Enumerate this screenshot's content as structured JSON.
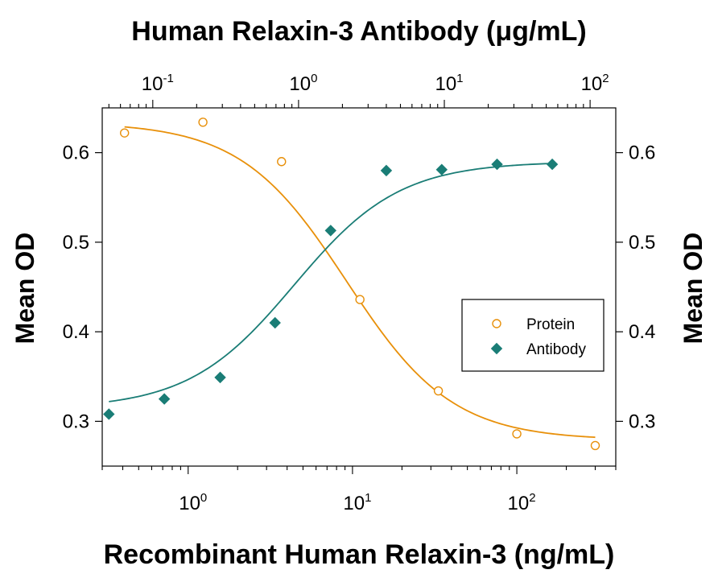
{
  "chart_data": {
    "type": "scatter",
    "title": "Human Relaxin-3 Antibody (μg/mL)",
    "xlabel": "Recombinant Human Relaxin-3 (ng/mL)",
    "x2label": "Human Relaxin-3 Antibody (μg/mL)",
    "ylabel": "Mean OD",
    "y2label": "Mean OD",
    "xscale": "log",
    "xlim": [
      0.3,
      400
    ],
    "x2lim": [
      0.045,
      150
    ],
    "ylim": [
      0.25,
      0.65
    ],
    "yticks": [
      "0.3",
      "0.4",
      "0.5",
      "0.6"
    ],
    "xticks": [
      {
        "value": 1,
        "base": "10",
        "exp": "0"
      },
      {
        "value": 10,
        "base": "10",
        "exp": "1"
      },
      {
        "value": 100,
        "base": "10",
        "exp": "2"
      }
    ],
    "x2ticks": [
      {
        "value": 0.1,
        "base": "10",
        "exp": "-1"
      },
      {
        "value": 1,
        "base": "10",
        "exp": "0"
      },
      {
        "value": 10,
        "base": "10",
        "exp": "1"
      },
      {
        "value": 100,
        "base": "10",
        "exp": "2"
      }
    ],
    "grid": false,
    "legend": {
      "position": "right"
    },
    "series": [
      {
        "name": "Protein",
        "marker": "open-circle",
        "color": "#E8900A",
        "axis": "bottom",
        "x": [
          0.41,
          1.23,
          3.7,
          11.1,
          33.3,
          100,
          300
        ],
        "y": [
          0.622,
          0.634,
          0.59,
          0.436,
          0.334,
          0.286,
          0.273
        ],
        "fit": {
          "top": 0.634,
          "bottom": 0.279,
          "ec50": 9.2,
          "hill": 1.35
        }
      },
      {
        "name": "Antibody",
        "marker": "filled-diamond",
        "color": "#1A7D76",
        "axis": "top",
        "x": [
          0.05,
          0.12,
          0.29,
          0.69,
          1.66,
          4.0,
          9.6,
          23,
          55
        ],
        "y": [
          0.308,
          0.325,
          0.349,
          0.41,
          0.513,
          0.58,
          0.581,
          0.587,
          0.587
        ],
        "fit": {
          "top": 0.59,
          "bottom": 0.314,
          "ec50": 0.93,
          "hill": 1.2
        }
      }
    ]
  }
}
